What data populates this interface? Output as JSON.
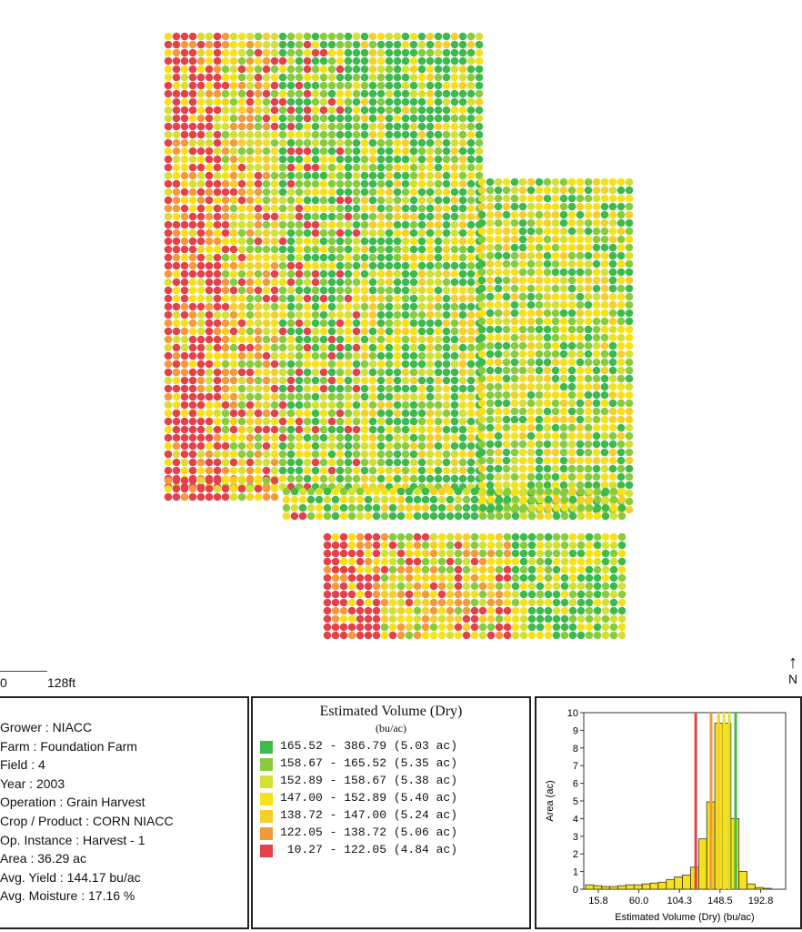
{
  "map": {
    "scale_zero": "0",
    "scale_distance": "128ft",
    "north_label": "N",
    "north_arrow": "↑"
  },
  "info": {
    "lines": [
      "Grower : NIACC",
      "Farm  : Foundation Farm",
      "Field  : 4",
      "Year : 2003",
      "Operation  : Grain Harvest",
      "Crop / Product : CORN NIACC",
      "Op. Instance : Harvest - 1",
      "Area : 36.29 ac",
      "Avg. Yield : 144.17 bu/ac",
      "Avg. Moisture : 17.16 %"
    ]
  },
  "legend": {
    "title": "Estimated Volume (Dry)",
    "unit": "(bu/ac)",
    "rows": [
      {
        "text": "165.52 - 386.79 (5.03 ac)",
        "color": "#3cba4c"
      },
      {
        "text": "158.67 - 165.52 (5.35 ac)",
        "color": "#86cc3c"
      },
      {
        "text": "152.89 - 158.67 (5.38 ac)",
        "color": "#d4e034"
      },
      {
        "text": "147.00 - 152.89 (5.40 ac)",
        "color": "#f7e11c"
      },
      {
        "text": "138.72 - 147.00 (5.24 ac)",
        "color": "#f7cf2a"
      },
      {
        "text": "122.05 - 138.72 (5.06 ac)",
        "color": "#f39a3c"
      },
      {
        "text": " 10.27 - 122.05 (4.84 ac)",
        "color": "#e3424a"
      }
    ]
  },
  "chart_data": {
    "type": "bar",
    "xlabel": "Estimated Volume (Dry) (bu/ac)",
    "ylabel": "Area (ac)",
    "ylim": [
      0,
      10
    ],
    "xlim": [
      0,
      220
    ],
    "x_ticks": [
      "15.8",
      "60.0",
      "104.3",
      "148.5",
      "192.8"
    ],
    "x_tick_values": [
      15.8,
      60.0,
      104.3,
      148.5,
      192.8
    ],
    "y_ticks": [
      0,
      1,
      2,
      3,
      4,
      5,
      6,
      7,
      8,
      9,
      10
    ],
    "bin_width": 8.8,
    "bins": [
      2,
      10.8,
      19.6,
      28.4,
      37.2,
      46,
      54.8,
      63.6,
      72.4,
      81.2,
      90,
      98.8,
      107.6,
      116.4,
      125.2,
      134,
      142.8,
      151.6,
      160.4,
      169.2,
      178,
      186.8,
      195.6
    ],
    "values": [
      0.25,
      0.2,
      0.15,
      0.15,
      0.2,
      0.25,
      0.25,
      0.3,
      0.35,
      0.4,
      0.55,
      0.7,
      0.8,
      1.25,
      2.85,
      4.95,
      9.4,
      9.4,
      4.0,
      1.0,
      0.3,
      0.1,
      0.05
    ],
    "bar_color": "#f7e11c",
    "break_lines": [
      {
        "value": 122.05,
        "color": "#e3424a"
      },
      {
        "value": 138.72,
        "color": "#f39a3c"
      },
      {
        "value": 147.0,
        "color": "#f7cf2a"
      },
      {
        "value": 152.89,
        "color": "#f7e11c"
      },
      {
        "value": 158.67,
        "color": "#d4e034"
      },
      {
        "value": 165.52,
        "color": "#3cba4c"
      }
    ]
  }
}
